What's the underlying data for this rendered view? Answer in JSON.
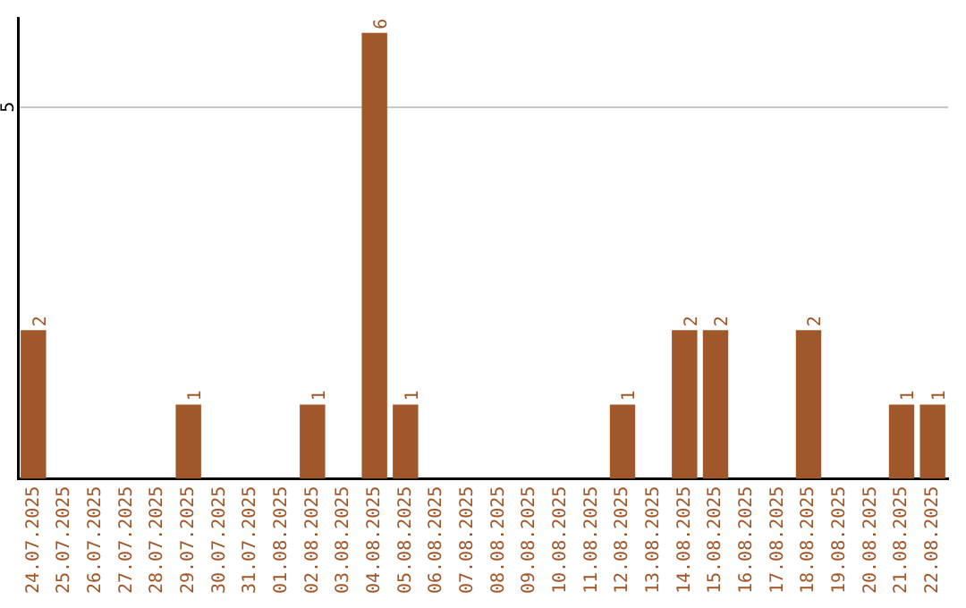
{
  "chart_data": {
    "type": "bar",
    "categories": [
      "24.07.2025",
      "25.07.2025",
      "26.07.2025",
      "27.07.2025",
      "28.07.2025",
      "29.07.2025",
      "30.07.2025",
      "31.07.2025",
      "01.08.2025",
      "02.08.2025",
      "03.08.2025",
      "04.08.2025",
      "05.08.2025",
      "06.08.2025",
      "07.08.2025",
      "08.08.2025",
      "09.08.2025",
      "10.08.2025",
      "11.08.2025",
      "12.08.2025",
      "13.08.2025",
      "14.08.2025",
      "15.08.2025",
      "16.08.2025",
      "17.08.2025",
      "18.08.2025",
      "19.08.2025",
      "20.08.2025",
      "21.08.2025",
      "22.08.2025"
    ],
    "values": [
      2,
      0,
      0,
      0,
      0,
      1,
      0,
      0,
      0,
      1,
      0,
      6,
      1,
      0,
      0,
      0,
      0,
      0,
      0,
      1,
      0,
      2,
      2,
      0,
      0,
      2,
      0,
      0,
      1,
      1
    ],
    "value_labels": [
      "2",
      null,
      null,
      null,
      null,
      "1",
      null,
      null,
      null,
      "1",
      null,
      "6",
      "1",
      null,
      null,
      null,
      null,
      null,
      null,
      "1",
      null,
      "2",
      "2",
      null,
      null,
      "2",
      null,
      null,
      "1",
      "1"
    ],
    "color": "#a0572a",
    "ylim": [
      0,
      6.2
    ],
    "yticks": [
      5
    ],
    "grid": "y",
    "legend": false
  }
}
